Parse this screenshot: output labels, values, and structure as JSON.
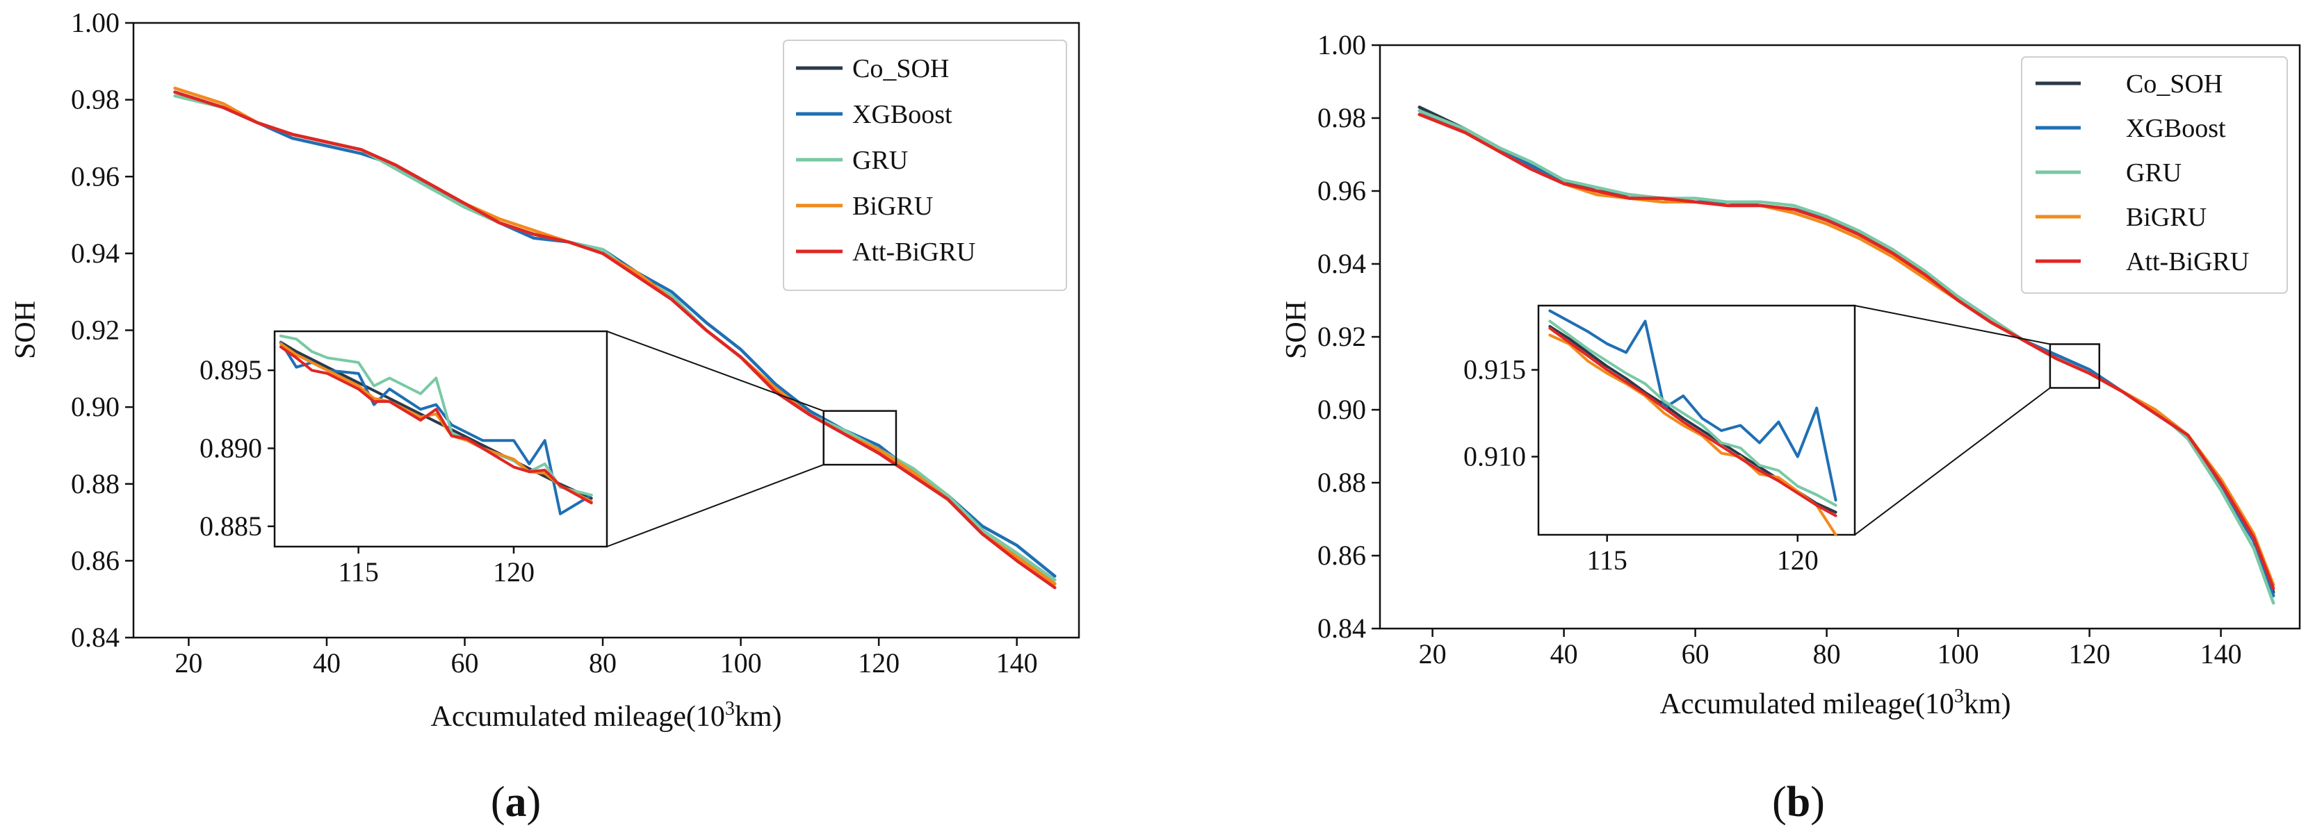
{
  "figure": {
    "panels": [
      {
        "caption_letter": "a",
        "caption_full": "(a)",
        "xlabel_text": "Accumulated mileage(10",
        "xlabel_sup": "3",
        "xlabel_unit": "km)",
        "ylabel": "SOH",
        "legend_labels": [
          "Co_SOH",
          "XGBoost",
          "GRU",
          "BiGRU",
          "Att-BiGRU"
        ]
      },
      {
        "caption_letter": "b",
        "caption_full": "(b)",
        "xlabel_text": "Accumulated mileage(10",
        "xlabel_sup": "3",
        "xlabel_unit": "km)",
        "ylabel": "SOH",
        "legend_labels": [
          "Co_SOH",
          "XGBoost",
          "GRU",
          "BiGRU",
          "Att-BiGRU"
        ]
      }
    ]
  },
  "colors": {
    "Co_SOH": "#2b3a4a",
    "XGBoost": "#1f6fb4",
    "GRU": "#79c9a6",
    "BiGRU": "#f28a1b",
    "Att-BiGRU": "#e02624",
    "axis": "#111111"
  },
  "chart_data": [
    {
      "type": "line",
      "title": "(a)",
      "xlabel": "Accumulated mileage(10^3km)",
      "ylabel": "SOH",
      "xlim": [
        12,
        149
      ],
      "ylim": [
        0.84,
        1.0
      ],
      "xticks": [
        20,
        40,
        60,
        80,
        100,
        120,
        140
      ],
      "xtick_labels": [
        "20",
        "40",
        "60",
        "80",
        "100",
        "120",
        "140"
      ],
      "yticks": [
        0.84,
        0.86,
        0.88,
        0.9,
        0.92,
        0.94,
        0.96,
        0.98,
        1.0
      ],
      "ytick_labels": [
        "0.84",
        "0.86",
        "0.88",
        "0.90",
        "0.92",
        "0.94",
        "0.96",
        "0.98",
        "1.00"
      ],
      "legend": "top-right",
      "x": [
        18,
        25,
        30,
        35,
        40,
        45,
        50,
        55,
        60,
        65,
        70,
        75,
        80,
        85,
        90,
        95,
        100,
        105,
        110,
        115,
        120,
        125,
        130,
        135,
        140,
        145.5
      ],
      "series": [
        {
          "name": "Co_SOH",
          "values": [
            0.982,
            0.978,
            0.974,
            0.971,
            0.969,
            0.967,
            0.963,
            0.958,
            0.953,
            0.948,
            0.945,
            0.943,
            0.94,
            0.935,
            0.928,
            0.92,
            0.913,
            0.904,
            0.898,
            0.893,
            0.888,
            0.882,
            0.876,
            0.867,
            0.861,
            0.854
          ]
        },
        {
          "name": "XGBoost",
          "values": [
            0.982,
            0.978,
            0.974,
            0.97,
            0.968,
            0.966,
            0.963,
            0.957,
            0.953,
            0.948,
            0.944,
            0.943,
            0.941,
            0.935,
            0.93,
            0.922,
            0.915,
            0.906,
            0.899,
            0.894,
            0.89,
            0.883,
            0.877,
            0.869,
            0.864,
            0.856
          ]
        },
        {
          "name": "GRU",
          "values": [
            0.981,
            0.978,
            0.974,
            0.971,
            0.969,
            0.967,
            0.962,
            0.957,
            0.952,
            0.948,
            0.945,
            0.943,
            0.941,
            0.934,
            0.929,
            0.92,
            0.913,
            0.905,
            0.898,
            0.894,
            0.889,
            0.884,
            0.877,
            0.868,
            0.862,
            0.855
          ]
        },
        {
          "name": "BiGRU",
          "values": [
            0.983,
            0.979,
            0.974,
            0.971,
            0.969,
            0.967,
            0.963,
            0.958,
            0.953,
            0.949,
            0.946,
            0.943,
            0.94,
            0.935,
            0.928,
            0.92,
            0.913,
            0.905,
            0.898,
            0.893,
            0.889,
            0.883,
            0.876,
            0.867,
            0.861,
            0.854
          ]
        },
        {
          "name": "Att-BiGRU",
          "values": [
            0.982,
            0.978,
            0.974,
            0.971,
            0.969,
            0.967,
            0.963,
            0.958,
            0.953,
            0.948,
            0.945,
            0.943,
            0.94,
            0.934,
            0.928,
            0.92,
            0.913,
            0.904,
            0.898,
            0.893,
            0.888,
            0.882,
            0.876,
            0.867,
            0.86,
            0.853
          ]
        }
      ],
      "zoom_box": {
        "x": [
          112,
          122.5
        ],
        "y": [
          0.885,
          0.899
        ]
      },
      "inset": {
        "xlim": [
          112.3,
          123
        ],
        "ylim": [
          0.8837,
          0.8975
        ],
        "xticks": [
          115,
          120
        ],
        "xtick_labels": [
          "115",
          "120"
        ],
        "yticks": [
          0.885,
          0.89,
          0.895
        ],
        "ytick_labels": [
          "0.885",
          "0.890",
          "0.895"
        ],
        "x": [
          112.5,
          113,
          113.5,
          114,
          115,
          115.5,
          116,
          117,
          117.5,
          118,
          118.5,
          119,
          120,
          120.5,
          121,
          121.5,
          122.5
        ],
        "series": [
          {
            "name": "Co_SOH",
            "values": [
              0.8968,
              0.8962,
              0.8957,
              0.8952,
              0.8942,
              0.8937,
              0.8932,
              0.8922,
              0.8917,
              0.8912,
              0.8907,
              0.8902,
              0.8892,
              0.8887,
              0.8882,
              0.8877,
              0.8868
            ]
          },
          {
            "name": "XGBoost",
            "values": [
              0.8968,
              0.8952,
              0.8955,
              0.895,
              0.8948,
              0.8928,
              0.8938,
              0.8925,
              0.8928,
              0.8915,
              0.891,
              0.8905,
              0.8905,
              0.889,
              0.8905,
              0.8858,
              0.887
            ]
          },
          {
            "name": "GRU",
            "values": [
              0.8972,
              0.897,
              0.8962,
              0.8958,
              0.8955,
              0.894,
              0.8945,
              0.8935,
              0.8945,
              0.891,
              0.8905,
              0.89,
              0.8892,
              0.8885,
              0.889,
              0.8875,
              0.887
            ]
          },
          {
            "name": "BiGRU",
            "values": [
              0.8967,
              0.896,
              0.8955,
              0.895,
              0.894,
              0.8932,
              0.893,
              0.892,
              0.8922,
              0.8908,
              0.8905,
              0.89,
              0.8893,
              0.8885,
              0.8884,
              0.8876,
              0.8866
            ]
          },
          {
            "name": "Att-BiGRU",
            "values": [
              0.8965,
              0.8958,
              0.895,
              0.8948,
              0.8938,
              0.893,
              0.893,
              0.8918,
              0.8925,
              0.8908,
              0.8906,
              0.89,
              0.8888,
              0.8885,
              0.8886,
              0.8876,
              0.8865
            ]
          }
        ]
      }
    },
    {
      "type": "line",
      "title": "(b)",
      "xlabel": "Accumulated mileage(10^3km)",
      "ylabel": "SOH",
      "xlim": [
        12,
        152
      ],
      "ylim": [
        0.84,
        1.0
      ],
      "xticks": [
        20,
        40,
        60,
        80,
        100,
        120,
        140
      ],
      "xtick_labels": [
        "20",
        "40",
        "60",
        "80",
        "100",
        "120",
        "140"
      ],
      "yticks": [
        0.84,
        0.86,
        0.88,
        0.9,
        0.92,
        0.94,
        0.96,
        0.98,
        1.0
      ],
      "ytick_labels": [
        "0.84",
        "0.86",
        "0.88",
        "0.90",
        "0.92",
        "0.94",
        "0.96",
        "0.98",
        "1.00"
      ],
      "legend": "top-right",
      "x": [
        18,
        25,
        30,
        35,
        40,
        45,
        50,
        55,
        60,
        65,
        70,
        75,
        80,
        85,
        90,
        95,
        100,
        105,
        110,
        115,
        120,
        125,
        130,
        135,
        140,
        145,
        148
      ],
      "series": [
        {
          "name": "Co_SOH",
          "values": [
            0.983,
            0.977,
            0.972,
            0.967,
            0.963,
            0.96,
            0.959,
            0.958,
            0.957,
            0.957,
            0.956,
            0.955,
            0.952,
            0.948,
            0.943,
            0.937,
            0.93,
            0.924,
            0.919,
            0.914,
            0.91,
            0.905,
            0.9,
            0.893,
            0.88,
            0.865,
            0.85
          ]
        },
        {
          "name": "XGBoost",
          "values": [
            0.982,
            0.976,
            0.972,
            0.967,
            0.962,
            0.96,
            0.958,
            0.958,
            0.957,
            0.957,
            0.956,
            0.955,
            0.953,
            0.948,
            0.944,
            0.937,
            0.931,
            0.925,
            0.919,
            0.915,
            0.911,
            0.905,
            0.899,
            0.893,
            0.879,
            0.864,
            0.849
          ]
        },
        {
          "name": "GRU",
          "values": [
            0.982,
            0.977,
            0.972,
            0.968,
            0.963,
            0.961,
            0.959,
            0.958,
            0.958,
            0.957,
            0.957,
            0.956,
            0.953,
            0.949,
            0.944,
            0.938,
            0.931,
            0.925,
            0.919,
            0.914,
            0.91,
            0.905,
            0.9,
            0.892,
            0.878,
            0.862,
            0.847
          ]
        },
        {
          "name": "BiGRU",
          "values": [
            0.981,
            0.976,
            0.971,
            0.966,
            0.962,
            0.959,
            0.958,
            0.957,
            0.957,
            0.956,
            0.956,
            0.954,
            0.951,
            0.947,
            0.942,
            0.936,
            0.93,
            0.924,
            0.919,
            0.914,
            0.91,
            0.905,
            0.9,
            0.893,
            0.881,
            0.866,
            0.852
          ]
        },
        {
          "name": "Att-BiGRU",
          "values": [
            0.981,
            0.976,
            0.971,
            0.966,
            0.962,
            0.96,
            0.958,
            0.958,
            0.957,
            0.956,
            0.956,
            0.955,
            0.952,
            0.948,
            0.943,
            0.937,
            0.93,
            0.924,
            0.919,
            0.914,
            0.91,
            0.905,
            0.899,
            0.893,
            0.88,
            0.865,
            0.851
          ]
        }
      ],
      "zoom_box": {
        "x": [
          114,
          121.5
        ],
        "y": [
          0.906,
          0.918
        ]
      },
      "inset": {
        "xlim": [
          113.2,
          121.5
        ],
        "ylim": [
          0.9055,
          0.9187
        ],
        "xticks": [
          115,
          120
        ],
        "xtick_labels": [
          "115",
          "120"
        ],
        "yticks": [
          0.91,
          0.915
        ],
        "ytick_labels": [
          "0.910",
          "0.915"
        ],
        "x": [
          113.5,
          114,
          114.5,
          115,
          115.5,
          116,
          116.5,
          117,
          117.5,
          118,
          118.5,
          119,
          119.5,
          120,
          120.5,
          121
        ],
        "series": [
          {
            "name": "Co_SOH",
            "values": [
              0.9175,
              0.9168,
              0.916,
              0.9152,
              0.9145,
              0.9137,
              0.913,
              0.9122,
              0.9115,
              0.9108,
              0.9101,
              0.9094,
              0.9087,
              0.908,
              0.9073,
              0.9068
            ]
          },
          {
            "name": "XGBoost",
            "values": [
              0.9184,
              0.9178,
              0.9172,
              0.9165,
              0.916,
              0.9178,
              0.9128,
              0.9135,
              0.9122,
              0.9115,
              0.9118,
              0.9108,
              0.912,
              0.91,
              0.9128,
              0.9075
            ]
          },
          {
            "name": "GRU",
            "values": [
              0.9178,
              0.917,
              0.9162,
              0.9155,
              0.9148,
              0.9142,
              0.9132,
              0.9125,
              0.9118,
              0.9108,
              0.9105,
              0.9095,
              0.9092,
              0.9083,
              0.9078,
              0.9072
            ]
          },
          {
            "name": "BiGRU",
            "values": [
              0.917,
              0.9165,
              0.9155,
              0.9148,
              0.9142,
              0.9135,
              0.9125,
              0.9118,
              0.9112,
              0.9102,
              0.91,
              0.909,
              0.9088,
              0.908,
              0.9072,
              0.9055
            ]
          },
          {
            "name": "Att-BiGRU",
            "values": [
              0.9174,
              0.9166,
              0.9158,
              0.915,
              0.9143,
              0.9136,
              0.9128,
              0.912,
              0.9113,
              0.9106,
              0.9099,
              0.9092,
              0.9086,
              0.9079,
              0.9072,
              0.9066
            ]
          }
        ]
      }
    }
  ]
}
